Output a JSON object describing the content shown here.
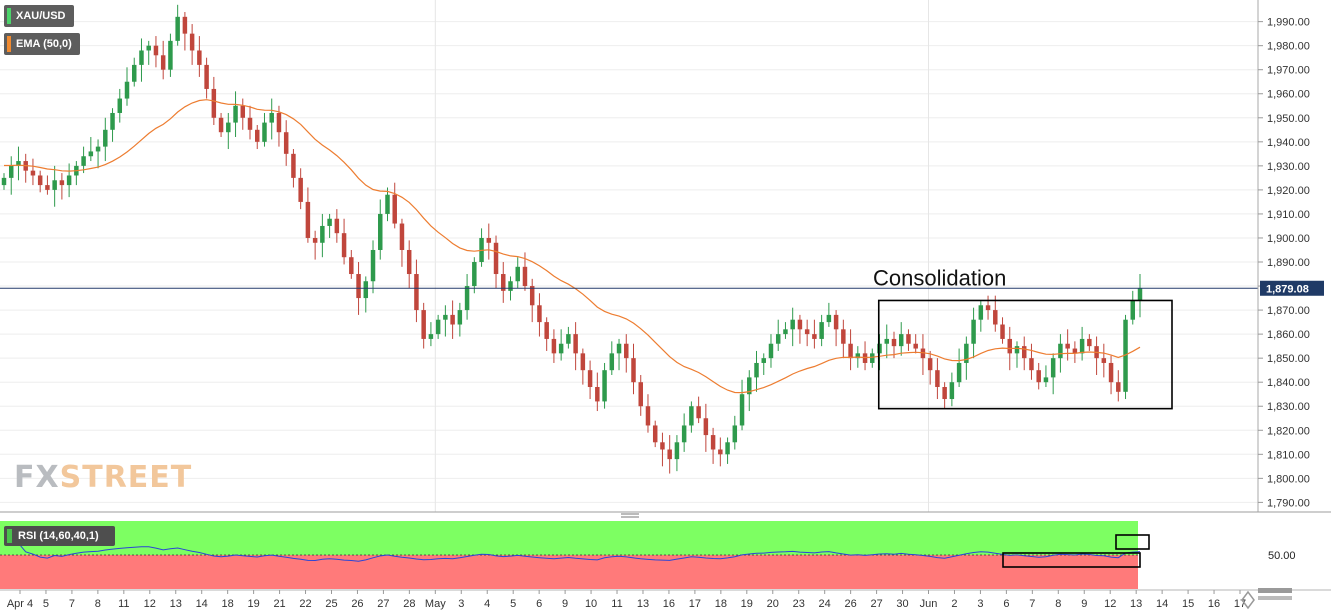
{
  "chart_data": {
    "type": "candlestick",
    "symbol": "XAU/USD",
    "indicator_label": "EMA (50,0)",
    "annotation": "Consolidation",
    "last_price": 1879.08,
    "last_price_label": "1,879.08",
    "ylim": [
      1786,
      1999
    ],
    "yticks": [
      1790,
      1800,
      1810,
      1820,
      1830,
      1840,
      1850,
      1860,
      1870,
      1880,
      1890,
      1900,
      1910,
      1920,
      1930,
      1940,
      1950,
      1960,
      1970,
      1980,
      1990
    ],
    "ytick_labels": [
      "1,790.00",
      "1,800.00",
      "1,810.00",
      "1,820.00",
      "1,830.00",
      "1,840.00",
      "1,850.00",
      "1,860.00",
      "1,870.00",
      "1,880.00",
      "1,890.00",
      "1,900.00",
      "1,910.00",
      "1,920.00",
      "1,930.00",
      "1,940.00",
      "1,950.00",
      "1,960.00",
      "1,970.00",
      "1,980.00",
      "1,990.00"
    ],
    "xticks": [
      "Apr 4",
      "5",
      "7",
      "8",
      "11",
      "12",
      "13",
      "14",
      "18",
      "19",
      "21",
      "22",
      "25",
      "26",
      "27",
      "28",
      "May",
      "3",
      "4",
      "5",
      "6",
      "9",
      "10",
      "11",
      "13",
      "16",
      "17",
      "18",
      "19",
      "20",
      "23",
      "24",
      "26",
      "27",
      "30",
      "Jun",
      "2",
      "3",
      "6",
      "7",
      "8",
      "9",
      "12",
      "13",
      "14",
      "15",
      "16",
      "17"
    ],
    "consolidation_range": [
      1829,
      1874
    ],
    "closes": [
      1925,
      1930,
      1932,
      1928,
      1926,
      1922,
      1920,
      1924,
      1922,
      1926,
      1930,
      1934,
      1936,
      1938,
      1945,
      1952,
      1958,
      1965,
      1972,
      1978,
      1980,
      1976,
      1970,
      1982,
      1992,
      1985,
      1978,
      1972,
      1962,
      1950,
      1944,
      1948,
      1955,
      1950,
      1945,
      1940,
      1948,
      1952,
      1944,
      1935,
      1925,
      1915,
      1900,
      1898,
      1905,
      1908,
      1902,
      1892,
      1885,
      1875,
      1882,
      1895,
      1910,
      1918,
      1906,
      1895,
      1885,
      1870,
      1858,
      1860,
      1866,
      1868,
      1864,
      1870,
      1880,
      1890,
      1900,
      1898,
      1885,
      1878,
      1882,
      1888,
      1880,
      1872,
      1865,
      1858,
      1852,
      1856,
      1860,
      1852,
      1845,
      1838,
      1832,
      1845,
      1852,
      1856,
      1850,
      1840,
      1830,
      1822,
      1815,
      1812,
      1808,
      1815,
      1822,
      1830,
      1825,
      1818,
      1812,
      1810,
      1815,
      1822,
      1835,
      1842,
      1848,
      1850,
      1856,
      1860,
      1862,
      1866,
      1862,
      1860,
      1858,
      1865,
      1868,
      1862,
      1856,
      1850,
      1852,
      1848,
      1852,
      1856,
      1858,
      1855,
      1860,
      1856,
      1854,
      1850,
      1845,
      1838,
      1833,
      1840,
      1848,
      1856,
      1866,
      1872,
      1870,
      1864,
      1858,
      1852,
      1855,
      1850,
      1845,
      1840,
      1842,
      1850,
      1856,
      1854,
      1852,
      1858,
      1855,
      1850,
      1848,
      1840,
      1836,
      1866,
      1874,
      1879
    ]
  },
  "rsi": {
    "label": "RSI (14,60,40,1)",
    "level_label": "50.00",
    "ylim": [
      0,
      100
    ],
    "upper_band": 60,
    "lower_band": 40
  },
  "colors": {
    "up": "#2e9a4c",
    "down": "#c0463c",
    "ema": "#ed7d31",
    "price_line": "#243a6b",
    "rsi_upper_zone": "#7dff62",
    "rsi_lower_zone": "#ff7a7a",
    "rsi_line": "#2b45d6",
    "ema_swatch": "#f08a30",
    "rsi_swatch": "#49c14b"
  }
}
